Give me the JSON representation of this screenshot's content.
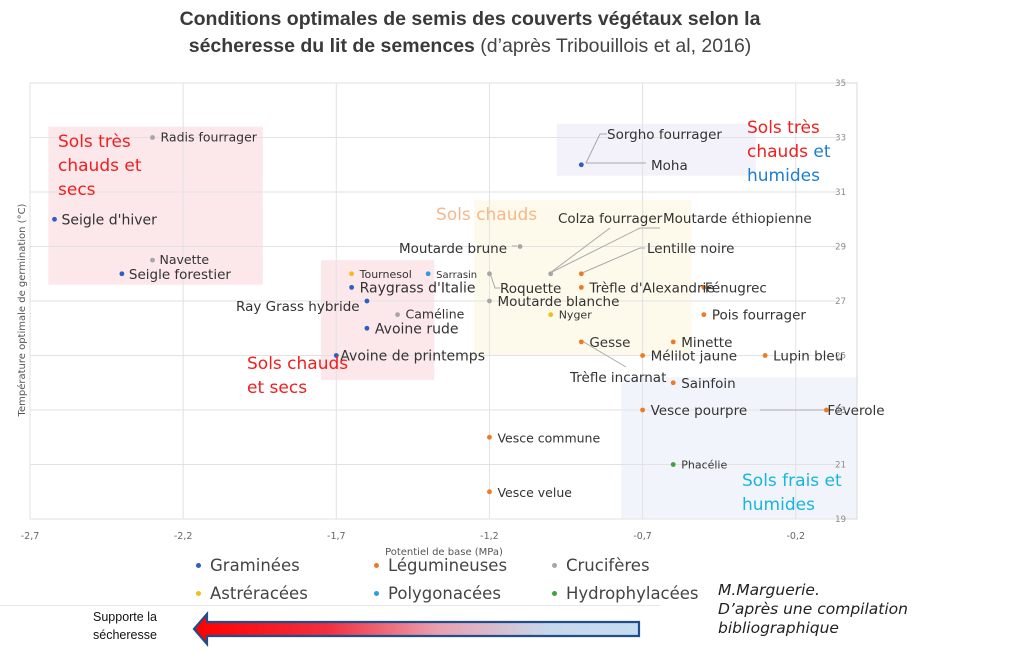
{
  "title": {
    "bold_line1": "Conditions optimales de semis des couverts végétaux selon la",
    "bold_line2": "sécheresse du lit de semences",
    "normal_line2": " (d’après Tribouillois et al, 2016)"
  },
  "chart_data": {
    "type": "scatter",
    "title": "Conditions optimales de semis des couverts végétaux selon la sécheresse du lit de semences (d’après Tribouillois et al, 2016)",
    "xlabel": "Potentiel de base (MPa)",
    "ylabel": "Température optimale de germination (°C)",
    "xlim": [
      -2.7,
      0.0
    ],
    "ylim": [
      19,
      35
    ],
    "x_ticks": [
      "-2,7",
      "-2,2",
      "-1,7",
      "-1,2",
      "-0,7",
      "-0,2"
    ],
    "x_tick_values": [
      -2.7,
      -2.2,
      -1.7,
      -1.2,
      -0.7,
      -0.2
    ],
    "y_ticks": [
      "19",
      "21",
      "23",
      "25",
      "27",
      "29",
      "31",
      "33",
      "35"
    ],
    "y_tick_values": [
      19,
      21,
      23,
      25,
      27,
      29,
      31,
      33,
      35
    ],
    "y_axis_side": "right",
    "grid": true,
    "legend_position": "bottom",
    "families": {
      "Graminées": "#2b5fc6",
      "Légumineuses": "#f07a22",
      "Crucifères": "#a6a6a6",
      "Astréracées": "#f2be1a",
      "Polygonacées": "#2a9ee0",
      "Hydrophylacées": "#3aa63a"
    },
    "legend": [
      [
        "Graminées",
        "Légumineuses",
        "Crucifères"
      ],
      [
        "Astréracées",
        "Polygonacées",
        "Hydrophylacées"
      ]
    ],
    "zones": [
      {
        "label_parts": [
          {
            "text": "Sols très",
            "color": "#f01e1e"
          },
          {
            "text": "chauds et",
            "color": "#f01e1e"
          },
          {
            "text": "secs",
            "color": "#f01e1e"
          }
        ],
        "x": [
          -2.64,
          -1.94
        ],
        "y": [
          27.6,
          33.4
        ],
        "fill": "#fbe3e6"
      },
      {
        "label_parts": [
          {
            "text": "Sols chauds",
            "color": "#f01e1e"
          },
          {
            "text": "et secs",
            "color": "#f01e1e"
          }
        ],
        "x": [
          -1.75,
          -1.38
        ],
        "y": [
          24.1,
          28.5
        ],
        "fill": "#fbe3e6"
      },
      {
        "label_parts": [
          {
            "text": "Sols chauds",
            "color": "#f5b88a"
          }
        ],
        "x": [
          -1.25,
          -0.54
        ],
        "y": [
          25.0,
          30.7
        ],
        "fill": "#fdf8e8"
      },
      {
        "label_parts": [
          {
            "text": "Sols très",
            "color": "#f01e1e"
          },
          {
            "text": "chauds ",
            "color": "#f01e1e",
            "tail": "et",
            "tail_color": "#1a7fd0"
          },
          {
            "text": "humides",
            "color": "#1a7fd0"
          }
        ],
        "x": [
          -0.98,
          -0.33
        ],
        "y": [
          31.6,
          33.5
        ],
        "fill": "#f1eef9"
      },
      {
        "label_parts": [
          {
            "text": "Sols frais et",
            "color": "#17b4e0"
          },
          {
            "text": "humides",
            "color": "#17b4e0"
          }
        ],
        "x": [
          -0.77,
          0.0
        ],
        "y": [
          19.0,
          24.2
        ],
        "fill": "#eef3fa"
      }
    ],
    "points": [
      {
        "name": "Radis fourrager",
        "family": "Crucifères",
        "x": -2.3,
        "y": 33.0
      },
      {
        "name": "Seigle d'hiver",
        "family": "Graminées",
        "x": -2.62,
        "y": 30.0
      },
      {
        "name": "Navette",
        "family": "Crucifères",
        "x": -2.3,
        "y": 28.5
      },
      {
        "name": "Seigle forestier",
        "family": "Graminées",
        "x": -2.4,
        "y": 28.0
      },
      {
        "name": "Sorgho fourrager",
        "family": "Graminées",
        "x": -0.9,
        "y": 32.0
      },
      {
        "name": "Moha",
        "family": "Graminées",
        "x": -0.9,
        "y": 32.0
      },
      {
        "name": "Moutarde brune",
        "family": "Crucifères",
        "x": -1.1,
        "y": 29.0
      },
      {
        "name": "Colza fourrager",
        "family": "Crucifères",
        "x": -1.0,
        "y": 28.0
      },
      {
        "name": "Moutarde éthiopienne",
        "family": "Crucifères",
        "x": -1.0,
        "y": 28.0
      },
      {
        "name": "Lentille noire",
        "family": "Légumineuses",
        "x": -0.9,
        "y": 28.0
      },
      {
        "name": "Roquette",
        "family": "Crucifères",
        "x": -1.2,
        "y": 28.0
      },
      {
        "name": "Tournesol",
        "family": "Astréracées",
        "x": -1.65,
        "y": 28.0
      },
      {
        "name": "Sarrasin",
        "family": "Polygonacées",
        "x": -1.4,
        "y": 28.0
      },
      {
        "name": "Raygrass d'Italie",
        "family": "Graminées",
        "x": -1.65,
        "y": 27.5
      },
      {
        "name": "Trèfle d'Alexandrie",
        "family": "Légumineuses",
        "x": -0.9,
        "y": 27.5
      },
      {
        "name": "Fénugrec",
        "family": "Légumineuses",
        "x": -0.5,
        "y": 27.5
      },
      {
        "name": "Ray Grass hybride",
        "family": "Graminées",
        "x": -1.6,
        "y": 27.0
      },
      {
        "name": "Moutarde blanche",
        "family": "Crucifères",
        "x": -1.2,
        "y": 27.0
      },
      {
        "name": "Caméline",
        "family": "Crucifères",
        "x": -1.5,
        "y": 26.5
      },
      {
        "name": "Nyger",
        "family": "Astréracées",
        "x": -1.0,
        "y": 26.5
      },
      {
        "name": "Pois fourrager",
        "family": "Légumineuses",
        "x": -0.5,
        "y": 26.5
      },
      {
        "name": "Avoine rude",
        "family": "Graminées",
        "x": -1.6,
        "y": 26.0
      },
      {
        "name": "Gesse",
        "family": "Légumineuses",
        "x": -0.9,
        "y": 25.5
      },
      {
        "name": "Minette",
        "family": "Légumineuses",
        "x": -0.6,
        "y": 25.5
      },
      {
        "name": "Avoine de printemps",
        "family": "Graminées",
        "x": -1.7,
        "y": 25.0
      },
      {
        "name": "Mélilot jaune",
        "family": "Légumineuses",
        "x": -0.7,
        "y": 25.0
      },
      {
        "name": "Lupin bleu",
        "family": "Légumineuses",
        "x": -0.3,
        "y": 25.0
      },
      {
        "name": "Trèfle incarnat",
        "family": "Légumineuses",
        "x": -0.9,
        "y": 25.5
      },
      {
        "name": "Sainfoin",
        "family": "Légumineuses",
        "x": -0.6,
        "y": 24.0
      },
      {
        "name": "Vesce pourpre",
        "family": "Légumineuses",
        "x": -0.7,
        "y": 23.0
      },
      {
        "name": "Féverole",
        "family": "Légumineuses",
        "x": -0.1,
        "y": 23.0
      },
      {
        "name": "Vesce commune",
        "family": "Légumineuses",
        "x": -1.2,
        "y": 22.0
      },
      {
        "name": "Phacélie",
        "family": "Hydrophylacées",
        "x": -0.6,
        "y": 21.0
      },
      {
        "name": "Vesce velue",
        "family": "Légumineuses",
        "x": -1.2,
        "y": 20.0
      }
    ]
  },
  "footer": {
    "arrow_label_line1": "Supporte la",
    "arrow_label_line2": "sécheresse",
    "arrow_icon": "left-arrow-gradient-red-to-blue",
    "credit_line1": "M.Marguerie.",
    "credit_line2": "D’après une compilation",
    "credit_line3": "bibliographique"
  }
}
